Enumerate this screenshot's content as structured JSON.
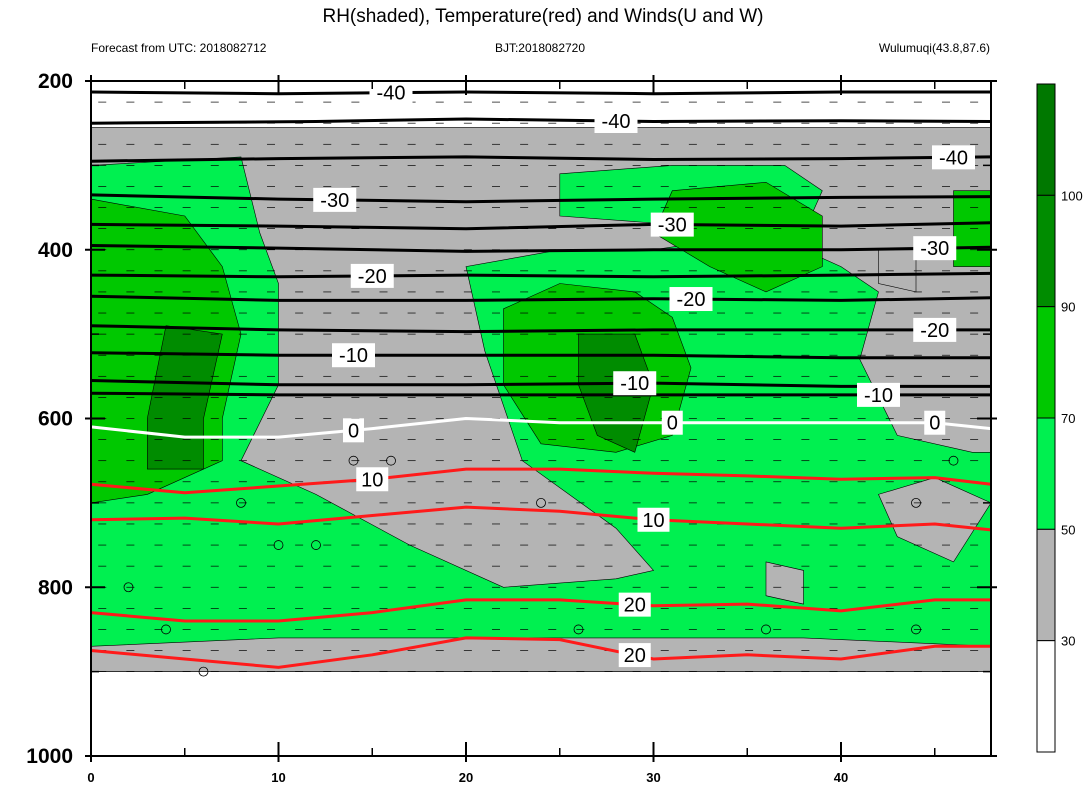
{
  "title": "RH(shaded), Temperature(red) and Winds(U and W)",
  "left_subtitle": "Forecast from UTC: 2018082712",
  "center_subtitle": "BJT:2018082720",
  "right_subtitle": "Wulumuqi(43.8,87.6)",
  "colors": {
    "rh_lt30": "#ffffff",
    "rh_30_50": "#b4b4b4",
    "rh_50_70": "#00f050",
    "rh_70_90": "#00c800",
    "rh_90_100": "#008c00",
    "rh_gt100": "#007800",
    "cold_isotherm": "#000000",
    "zero_isotherm": "#ffffff",
    "warm_isotherm": "#ff1a1a"
  },
  "chart_data": {
    "type": "contour",
    "x_ticks": [
      0,
      10,
      20,
      30,
      40
    ],
    "xlim": [
      0,
      48
    ],
    "y_ticks": [
      200,
      400,
      600,
      800,
      1000
    ],
    "ylim": [
      200,
      1000
    ],
    "y_reversed": true,
    "minor_y_ticks": [
      300,
      500,
      700,
      900
    ],
    "minor_x_ticks": [
      5,
      15,
      25,
      35,
      45
    ],
    "colorbar": {
      "boundaries": [
        30,
        50,
        70,
        90,
        100
      ],
      "labels": [
        "30",
        "50",
        "70",
        "90",
        "100"
      ],
      "bins": [
        "<30",
        "30-50",
        "50-70",
        "70-90",
        "90-100",
        ">100"
      ]
    },
    "rh_regions": [
      {
        "bin": "30-50",
        "points": [
          [
            0,
            255
          ],
          [
            48,
            255
          ],
          [
            48,
            900
          ],
          [
            0,
            900
          ]
        ]
      },
      {
        "bin": "50-70",
        "points": [
          [
            0,
            300
          ],
          [
            8,
            290
          ],
          [
            9,
            380
          ],
          [
            10,
            440
          ],
          [
            10,
            560
          ],
          [
            8,
            650
          ],
          [
            12,
            690
          ],
          [
            17,
            750
          ],
          [
            22,
            800
          ],
          [
            28,
            790
          ],
          [
            30,
            780
          ],
          [
            28,
            730
          ],
          [
            23,
            650
          ],
          [
            21,
            520
          ],
          [
            20,
            420
          ],
          [
            25,
            400
          ],
          [
            30,
            400
          ],
          [
            36,
            380
          ],
          [
            38,
            400
          ],
          [
            40,
            420
          ],
          [
            42,
            450
          ],
          [
            41,
            530
          ],
          [
            43,
            620
          ],
          [
            47,
            640
          ],
          [
            48,
            640
          ],
          [
            48,
            870
          ],
          [
            38,
            860
          ],
          [
            30,
            860
          ],
          [
            20,
            860
          ],
          [
            10,
            860
          ],
          [
            0,
            870
          ]
        ]
      },
      {
        "bin": "50-70",
        "points": [
          [
            25,
            310
          ],
          [
            31,
            300
          ],
          [
            37,
            300
          ],
          [
            39,
            330
          ],
          [
            38,
            380
          ],
          [
            31,
            370
          ],
          [
            25,
            360
          ]
        ]
      },
      {
        "bin": "30-50",
        "points": [
          [
            42,
            690
          ],
          [
            45,
            670
          ],
          [
            48,
            700
          ],
          [
            46,
            770
          ],
          [
            43,
            740
          ]
        ]
      },
      {
        "bin": "30-50",
        "points": [
          [
            36,
            770
          ],
          [
            38,
            780
          ],
          [
            38,
            820
          ],
          [
            36,
            810
          ]
        ]
      },
      {
        "bin": "30-50",
        "points": [
          [
            42,
            400
          ],
          [
            44,
            400
          ],
          [
            44,
            450
          ],
          [
            42,
            440
          ]
        ]
      },
      {
        "bin": "70-90",
        "points": [
          [
            0,
            340
          ],
          [
            5,
            360
          ],
          [
            7,
            420
          ],
          [
            8,
            500
          ],
          [
            7,
            600
          ],
          [
            7,
            650
          ],
          [
            3,
            690
          ],
          [
            0,
            700
          ]
        ]
      },
      {
        "bin": "70-90",
        "points": [
          [
            22,
            470
          ],
          [
            25,
            440
          ],
          [
            29,
            450
          ],
          [
            31,
            480
          ],
          [
            32,
            540
          ],
          [
            31,
            620
          ],
          [
            28,
            640
          ],
          [
            24,
            630
          ],
          [
            22,
            560
          ]
        ]
      },
      {
        "bin": "70-90",
        "points": [
          [
            31,
            330
          ],
          [
            36,
            320
          ],
          [
            39,
            360
          ],
          [
            39,
            420
          ],
          [
            36,
            450
          ],
          [
            33,
            420
          ],
          [
            30,
            380
          ]
        ]
      },
      {
        "bin": "70-90",
        "points": [
          [
            46,
            330
          ],
          [
            48,
            330
          ],
          [
            48,
            420
          ],
          [
            46,
            420
          ]
        ]
      },
      {
        "bin": "90-100",
        "points": [
          [
            4,
            490
          ],
          [
            7,
            500
          ],
          [
            6,
            600
          ],
          [
            6,
            660
          ],
          [
            3,
            660
          ],
          [
            3,
            600
          ]
        ]
      },
      {
        "bin": "90-100",
        "points": [
          [
            26,
            500
          ],
          [
            29,
            500
          ],
          [
            30,
            560
          ],
          [
            29,
            640
          ],
          [
            27,
            620
          ],
          [
            26,
            560
          ]
        ]
      },
      {
        "bin": "<30",
        "points": [
          [
            0,
            900
          ],
          [
            48,
            900
          ],
          [
            48,
            1000
          ],
          [
            0,
            1000
          ]
        ]
      }
    ],
    "isotherms": [
      {
        "label": "-40",
        "label_x": 16,
        "color": "black",
        "points": [
          [
            0,
            213
          ],
          [
            10,
            215
          ],
          [
            20,
            213
          ],
          [
            30,
            215
          ],
          [
            40,
            213
          ],
          [
            48,
            213
          ]
        ]
      },
      {
        "label": "-40",
        "label_x": 28,
        "color": "black",
        "points": [
          [
            0,
            250
          ],
          [
            12,
            248
          ],
          [
            20,
            245
          ],
          [
            30,
            248
          ],
          [
            40,
            247
          ],
          [
            48,
            248
          ]
        ]
      },
      {
        "label": "-40",
        "label_x": 46,
        "color": "black",
        "points": [
          [
            0,
            295
          ],
          [
            10,
            292
          ],
          [
            20,
            290
          ],
          [
            30,
            293
          ],
          [
            40,
            292
          ],
          [
            48,
            290
          ]
        ]
      },
      {
        "label": "-30",
        "label_x": 13,
        "color": "black",
        "points": [
          [
            0,
            335
          ],
          [
            10,
            340
          ],
          [
            20,
            343
          ],
          [
            30,
            340
          ],
          [
            40,
            338
          ],
          [
            48,
            337
          ]
        ]
      },
      {
        "label": "-30",
        "label_x": 31,
        "color": "black",
        "points": [
          [
            0,
            370
          ],
          [
            10,
            372
          ],
          [
            20,
            375
          ],
          [
            30,
            370
          ],
          [
            40,
            372
          ],
          [
            48,
            368
          ]
        ]
      },
      {
        "label": "-30",
        "label_x": 45,
        "color": "black",
        "points": [
          [
            0,
            395
          ],
          [
            10,
            398
          ],
          [
            20,
            402
          ],
          [
            30,
            400
          ],
          [
            40,
            400
          ],
          [
            48,
            397
          ]
        ]
      },
      {
        "label": "-20",
        "label_x": 15,
        "color": "black",
        "points": [
          [
            0,
            430
          ],
          [
            10,
            432
          ],
          [
            20,
            430
          ],
          [
            30,
            432
          ],
          [
            40,
            430
          ],
          [
            48,
            428
          ]
        ]
      },
      {
        "label": "-20",
        "label_x": 32,
        "color": "black",
        "points": [
          [
            0,
            455
          ],
          [
            10,
            460
          ],
          [
            20,
            460
          ],
          [
            30,
            458
          ],
          [
            40,
            460
          ],
          [
            48,
            457
          ]
        ]
      },
      {
        "label": "-20",
        "label_x": 45,
        "color": "black",
        "points": [
          [
            0,
            490
          ],
          [
            10,
            495
          ],
          [
            20,
            497
          ],
          [
            30,
            495
          ],
          [
            40,
            495
          ],
          [
            48,
            495
          ]
        ]
      },
      {
        "label": "-10",
        "label_x": 14,
        "color": "black",
        "points": [
          [
            0,
            522
          ],
          [
            10,
            525
          ],
          [
            20,
            525
          ],
          [
            30,
            525
          ],
          [
            40,
            528
          ],
          [
            48,
            528
          ]
        ]
      },
      {
        "label": "-10",
        "label_x": 29,
        "color": "black",
        "points": [
          [
            0,
            555
          ],
          [
            10,
            560
          ],
          [
            20,
            560
          ],
          [
            30,
            558
          ],
          [
            40,
            562
          ],
          [
            48,
            562
          ]
        ]
      },
      {
        "label": "-10",
        "label_x": 42,
        "color": "black",
        "points": [
          [
            0,
            570
          ],
          [
            10,
            572
          ],
          [
            20,
            572
          ],
          [
            30,
            572
          ],
          [
            40,
            572
          ],
          [
            48,
            572
          ]
        ]
      },
      {
        "label": "0",
        "label_x": 14,
        "color": "white",
        "points": [
          [
            0,
            610
          ],
          [
            5,
            622
          ],
          [
            10,
            622
          ],
          [
            15,
            612
          ],
          [
            20,
            600
          ],
          [
            25,
            605
          ],
          [
            30,
            605
          ],
          [
            35,
            605
          ],
          [
            40,
            605
          ],
          [
            45,
            605
          ],
          [
            48,
            612
          ]
        ]
      },
      {
        "label": "0",
        "label_x": 31,
        "color": "white",
        "points": []
      },
      {
        "label": "0",
        "label_x": 45,
        "color": "white",
        "points": []
      },
      {
        "label": "10",
        "label_x": 15,
        "color": "red",
        "points": [
          [
            0,
            678
          ],
          [
            5,
            688
          ],
          [
            10,
            680
          ],
          [
            15,
            672
          ],
          [
            20,
            660
          ],
          [
            25,
            660
          ],
          [
            30,
            665
          ],
          [
            35,
            668
          ],
          [
            40,
            672
          ],
          [
            45,
            670
          ],
          [
            48,
            678
          ]
        ]
      },
      {
        "label": "10",
        "label_x": 30,
        "color": "red",
        "points": [
          [
            0,
            720
          ],
          [
            5,
            718
          ],
          [
            10,
            725
          ],
          [
            15,
            715
          ],
          [
            20,
            705
          ],
          [
            25,
            710
          ],
          [
            30,
            720
          ],
          [
            35,
            725
          ],
          [
            40,
            730
          ],
          [
            45,
            725
          ],
          [
            48,
            732
          ]
        ]
      },
      {
        "label": "20",
        "label_x": 29,
        "color": "red",
        "points": [
          [
            0,
            830
          ],
          [
            5,
            840
          ],
          [
            10,
            840
          ],
          [
            15,
            830
          ],
          [
            20,
            815
          ],
          [
            25,
            815
          ],
          [
            30,
            822
          ],
          [
            35,
            820
          ],
          [
            40,
            828
          ],
          [
            45,
            815
          ],
          [
            48,
            815
          ]
        ]
      },
      {
        "label": "20",
        "label_x": 29,
        "color": "red",
        "points": [
          [
            0,
            875
          ],
          [
            5,
            885
          ],
          [
            10,
            895
          ],
          [
            15,
            880
          ],
          [
            20,
            860
          ],
          [
            25,
            862
          ],
          [
            30,
            885
          ],
          [
            35,
            880
          ],
          [
            40,
            885
          ],
          [
            45,
            870
          ],
          [
            48,
            870
          ]
        ]
      }
    ],
    "wind_barb_rows_hPa": [
      225,
      250,
      275,
      300,
      325,
      350,
      375,
      400,
      425,
      450,
      475,
      500,
      525,
      550,
      575,
      600,
      625,
      650,
      675,
      700,
      725,
      750,
      775,
      800,
      825,
      850,
      875,
      900
    ],
    "calm_circles": [
      [
        14,
        650
      ],
      [
        16,
        650
      ],
      [
        8,
        700
      ],
      [
        24,
        700
      ],
      [
        44,
        700
      ],
      [
        46,
        650
      ],
      [
        10,
        750
      ],
      [
        12,
        750
      ],
      [
        2,
        800
      ],
      [
        4,
        850
      ],
      [
        26,
        850
      ],
      [
        36,
        850
      ],
      [
        44,
        850
      ],
      [
        6,
        900
      ]
    ]
  }
}
